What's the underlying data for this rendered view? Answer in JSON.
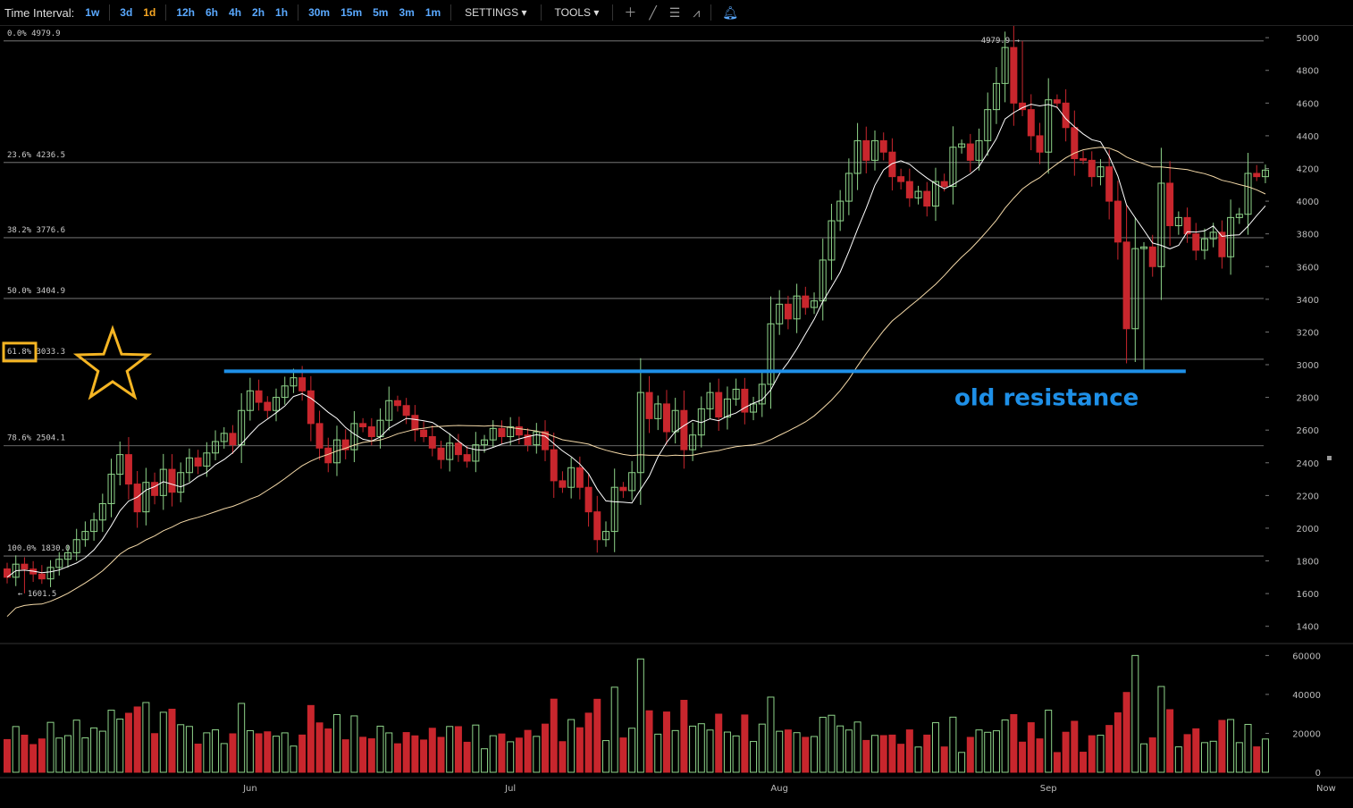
{
  "toolbar": {
    "label": "Time Interval:",
    "intervals": [
      "1w",
      "3d",
      "1d",
      "12h",
      "6h",
      "4h",
      "2h",
      "1h",
      "30m",
      "15m",
      "5m",
      "3m",
      "1m"
    ],
    "active_interval": "1d",
    "settings_label": "SETTINGS",
    "tools_label": "TOOLS",
    "tool_icons": [
      "crosshair-icon",
      "line-icon",
      "fib-icon",
      "pitchfork-icon"
    ],
    "alert_icon": "bell-icon"
  },
  "colors": {
    "up": "#8fd48a",
    "down": "#c8262d",
    "ma_fast": "#ffffff",
    "ma_slow": "#f4d9a8",
    "resistance": "#1e90e8",
    "highlight": "#f5b523",
    "fib_line": "#888888"
  },
  "chart_data": {
    "type": "candlestick",
    "ylim": [
      1300,
      5050
    ],
    "yticks": [
      1400,
      1600,
      1800,
      2000,
      2200,
      2400,
      2600,
      2800,
      3000,
      3200,
      3400,
      3600,
      3800,
      4000,
      4200,
      4400,
      4600,
      4800,
      5000
    ],
    "volume_ticks": [
      0,
      20000,
      40000,
      60000
    ],
    "volume_ylim": [
      0,
      62000
    ],
    "x_labels": [
      {
        "label": "Jun",
        "index": 28
      },
      {
        "label": "Jul",
        "index": 58
      },
      {
        "label": "Aug",
        "index": 89
      },
      {
        "label": "Sep",
        "index": 120
      },
      {
        "label": "Now",
        "index": 152
      }
    ],
    "fib_levels": [
      {
        "label": "0.0% 4979.9",
        "value": 4979.9
      },
      {
        "label": "23.6% 4236.5",
        "value": 4236.5
      },
      {
        "label": "38.2% 3776.6",
        "value": 3776.6
      },
      {
        "label": "50.0% 3404.9",
        "value": 3404.9
      },
      {
        "label": "61.8% 3033.3",
        "value": 3033.3,
        "highlight": true
      },
      {
        "label": "78.6% 2504.1",
        "value": 2504.1
      },
      {
        "label": "100.0% 1830.0",
        "value": 1830.0
      }
    ],
    "high_marker": "4979.9 →",
    "low_marker": "← 1601.5",
    "resistance": {
      "value": 2960,
      "from_index": 25,
      "to_index": 135,
      "label": "old resistance"
    },
    "closes": [
      1700,
      1780,
      1750,
      1720,
      1690,
      1760,
      1810,
      1850,
      1930,
      1980,
      2050,
      2150,
      2330,
      2450,
      2270,
      2100,
      2280,
      2200,
      2360,
      2220,
      2340,
      2430,
      2380,
      2460,
      2530,
      2580,
      2510,
      2720,
      2840,
      2770,
      2720,
      2800,
      2870,
      2920,
      2840,
      2640,
      2490,
      2400,
      2540,
      2480,
      2640,
      2620,
      2560,
      2660,
      2780,
      2750,
      2690,
      2600,
      2560,
      2490,
      2420,
      2520,
      2450,
      2410,
      2510,
      2540,
      2610,
      2560,
      2620,
      2570,
      2510,
      2590,
      2480,
      2290,
      2250,
      2370,
      2250,
      2100,
      1930,
      1980,
      2250,
      2230,
      2340,
      2830,
      2670,
      2760,
      2590,
      2720,
      2480,
      2570,
      2730,
      2830,
      2680,
      2790,
      2850,
      2710,
      2760,
      2880,
      3250,
      3370,
      3280,
      3420,
      3350,
      3390,
      3640,
      3880,
      4000,
      4170,
      4370,
      4250,
      4370,
      4300,
      4150,
      4120,
      4020,
      4060,
      3970,
      4120,
      4090,
      4330,
      4350,
      4250,
      4370,
      4560,
      4720,
      4940,
      4600,
      4560,
      4400,
      4300,
      4620,
      4600,
      4450,
      4260,
      4250,
      4150,
      4210,
      4000,
      3750,
      3220,
      3710,
      3720,
      3600,
      4110,
      3850,
      3900,
      3800,
      3700,
      3770,
      3810,
      3660,
      3900,
      3920,
      4170,
      4150,
      4190
    ]
  }
}
